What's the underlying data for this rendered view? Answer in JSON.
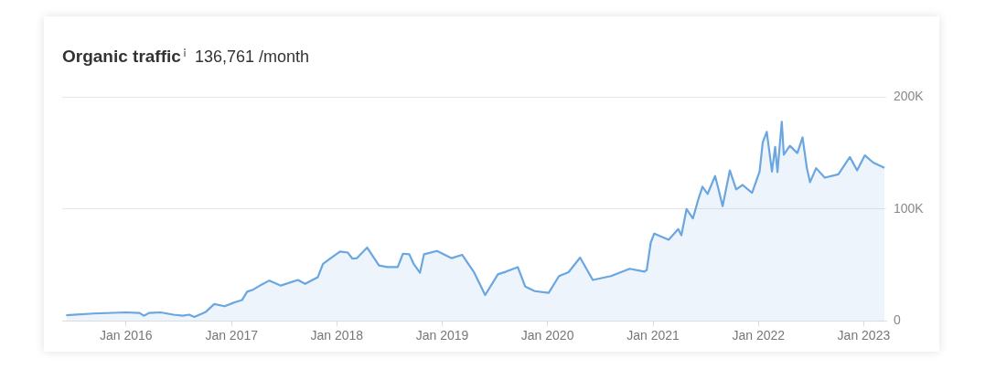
{
  "chart_data": {
    "type": "area",
    "title": "Organic traffic",
    "subtitle": "136,761 /month",
    "color": "#6aa6e0",
    "x": [
      "2015-06-08",
      "2015-09-11",
      "2016-01-01",
      "2016-02-17",
      "2016-03-03",
      "2016-03-21",
      "2016-04-30",
      "2016-06-13",
      "2016-07-16",
      "2016-08-07",
      "2016-08-25",
      "2016-10-04",
      "2016-11-02",
      "2016-12-08",
      "2017-01-12",
      "2017-02-06",
      "2017-02-24",
      "2017-03-18",
      "2017-04-16",
      "2017-05-12",
      "2017-06-21",
      "2017-08-19",
      "2017-09-13",
      "2017-10-27",
      "2017-11-14",
      "2017-12-13",
      "2018-01-12",
      "2018-02-08",
      "2018-02-24",
      "2018-03-11",
      "2018-04-16",
      "2018-05-27",
      "2018-06-25",
      "2018-07-31",
      "2018-08-18",
      "2018-09-09",
      "2018-09-24",
      "2018-10-16",
      "2018-10-30",
      "2018-12-14",
      "2019-02-03",
      "2019-03-11",
      "2019-04-20",
      "2019-05-30",
      "2019-07-13",
      "2019-08-11",
      "2019-09-20",
      "2019-10-16",
      "2019-11-18",
      "2020-01-05",
      "2020-02-10",
      "2020-03-14",
      "2020-04-23",
      "2020-06-06",
      "2020-08-08",
      "2020-10-12",
      "2020-12-02",
      "2020-12-10",
      "2020-12-24",
      "2021-01-05",
      "2021-02-24",
      "2021-03-29",
      "2021-04-09",
      "2021-04-27",
      "2021-05-19",
      "2021-06-06",
      "2021-06-21",
      "2021-07-09",
      "2021-08-04",
      "2021-08-15",
      "2021-08-30",
      "2021-09-24",
      "2021-10-16",
      "2021-11-07",
      "2021-12-10",
      "2022-01-05",
      "2022-01-16",
      "2022-01-30",
      "2022-02-17",
      "2022-02-28",
      "2022-03-08",
      "2022-03-23",
      "2022-03-30",
      "2022-04-20",
      "2022-05-16",
      "2022-06-03",
      "2022-06-18",
      "2022-06-29",
      "2022-07-20",
      "2022-08-19",
      "2022-10-05",
      "2022-11-14",
      "2022-12-09",
      "2023-01-05",
      "2023-02-03",
      "2023-03-14"
    ],
    "values": [
      5000,
      6500,
      7500,
      7000,
      4500,
      7000,
      7500,
      5500,
      4500,
      5500,
      3500,
      8000,
      15000,
      13000,
      16500,
      18500,
      26000,
      28000,
      32500,
      36000,
      31500,
      36500,
      33000,
      39000,
      51000,
      56500,
      62000,
      61000,
      55500,
      56000,
      65500,
      49500,
      48000,
      48000,
      60000,
      59500,
      51000,
      43000,
      59500,
      62500,
      56000,
      59000,
      44000,
      23000,
      41500,
      44000,
      48000,
      30500,
      26500,
      25000,
      40000,
      43500,
      56500,
      36500,
      40000,
      46500,
      44000,
      45500,
      70000,
      78000,
      72500,
      82000,
      76500,
      100000,
      91500,
      108000,
      120000,
      113500,
      129500,
      118500,
      102500,
      134500,
      117500,
      121500,
      114500,
      133500,
      159500,
      169000,
      133500,
      155500,
      133000,
      178000,
      148500,
      156500,
      150000,
      164000,
      136500,
      124000,
      136500,
      128000,
      131000,
      146500,
      134500,
      148000,
      141500,
      136761
    ],
    "xlim": [
      "2015-05-25",
      "2023-03-20"
    ],
    "xticks": [
      {
        "value": "2016-01-01",
        "label": "Jan 2016"
      },
      {
        "value": "2017-01-01",
        "label": "Jan 2017"
      },
      {
        "value": "2018-01-01",
        "label": "Jan 2018"
      },
      {
        "value": "2019-01-01",
        "label": "Jan 2019"
      },
      {
        "value": "2020-01-01",
        "label": "Jan 2020"
      },
      {
        "value": "2021-01-01",
        "label": "Jan 2021"
      },
      {
        "value": "2022-01-01",
        "label": "Jan 2022"
      },
      {
        "value": "2023-01-01",
        "label": "Jan 2023"
      }
    ],
    "ylim": [
      0,
      200000
    ],
    "yticks": [
      0,
      {
        "value": 100000,
        "label": "100K"
      },
      {
        "value": 200000,
        "label": "200K"
      }
    ],
    "grid": "y"
  }
}
